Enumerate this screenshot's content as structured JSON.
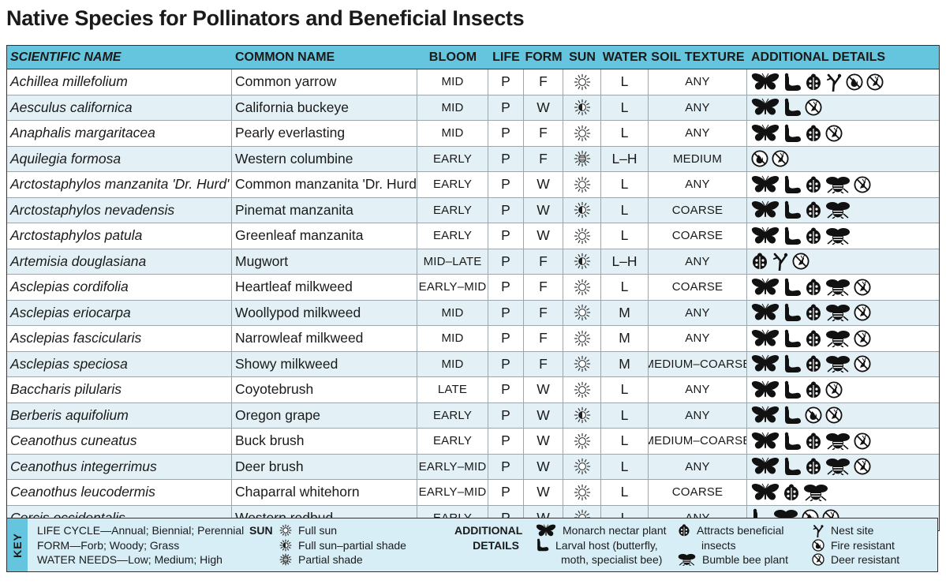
{
  "title": "Native Species for Pollinators and Beneficial Insects",
  "columns": {
    "scientific": "SCIENTIFIC NAME",
    "common": "COMMON NAME",
    "bloom": "BLOOM",
    "life": "LIFE",
    "form": "FORM",
    "sun": "SUN",
    "water": "WATER",
    "soil": "SOIL TEXTURE",
    "additional": "ADDITIONAL DETAILS"
  },
  "rows": [
    {
      "sci": "Achillea millefolium",
      "common": "Common yarrow",
      "bloom": "MID",
      "life": "P",
      "form": "F",
      "sun": "full-sun",
      "water": "L",
      "soil": "ANY",
      "details": [
        "monarch",
        "larval",
        "beneficial",
        "nest",
        "fire",
        "deer"
      ]
    },
    {
      "sci": "Aesculus californica",
      "common": "California buckeye",
      "bloom": "MID",
      "life": "P",
      "form": "W",
      "sun": "full-sun-partial",
      "water": "L",
      "soil": "ANY",
      "details": [
        "monarch",
        "larval",
        "deer"
      ]
    },
    {
      "sci": "Anaphalis margaritacea",
      "common": "Pearly everlasting",
      "bloom": "MID",
      "life": "P",
      "form": "F",
      "sun": "full-sun",
      "water": "L",
      "soil": "ANY",
      "details": [
        "monarch",
        "larval",
        "beneficial",
        "deer"
      ]
    },
    {
      "sci": "Aquilegia formosa",
      "common": "Western columbine",
      "bloom": "EARLY",
      "life": "P",
      "form": "F",
      "sun": "partial-shade",
      "water": "L–H",
      "soil": "MEDIUM",
      "details": [
        "fire",
        "deer"
      ]
    },
    {
      "sci": "Arctostaphylos manzanita 'Dr. Hurd'",
      "common": "Common manzanita 'Dr. Hurd'",
      "bloom": "EARLY",
      "life": "P",
      "form": "W",
      "sun": "full-sun",
      "water": "L",
      "soil": "ANY",
      "details": [
        "monarch",
        "larval",
        "beneficial",
        "bumble",
        "deer"
      ]
    },
    {
      "sci": "Arctostaphylos nevadensis",
      "common": "Pinemat manzanita",
      "bloom": "EARLY",
      "life": "P",
      "form": "W",
      "sun": "full-sun-partial",
      "water": "L",
      "soil": "COARSE",
      "details": [
        "monarch",
        "larval",
        "beneficial",
        "bumble"
      ]
    },
    {
      "sci": "Arctostaphylos patula",
      "common": "Greenleaf manzanita",
      "bloom": "EARLY",
      "life": "P",
      "form": "W",
      "sun": "full-sun",
      "water": "L",
      "soil": "COARSE",
      "details": [
        "monarch",
        "larval",
        "beneficial",
        "bumble"
      ]
    },
    {
      "sci": "Artemisia douglasiana",
      "common": "Mugwort",
      "bloom": "MID–LATE",
      "life": "P",
      "form": "F",
      "sun": "full-sun-partial",
      "water": "L–H",
      "soil": "ANY",
      "details": [
        "beneficial",
        "nest",
        "deer"
      ]
    },
    {
      "sci": "Asclepias cordifolia",
      "common": "Heartleaf milkweed",
      "bloom": "EARLY–MID",
      "life": "P",
      "form": "F",
      "sun": "full-sun",
      "water": "L",
      "soil": "COARSE",
      "details": [
        "monarch",
        "larval",
        "beneficial",
        "bumble",
        "deer"
      ]
    },
    {
      "sci": "Asclepias eriocarpa",
      "common": "Woollypod milkweed",
      "bloom": "MID",
      "life": "P",
      "form": "F",
      "sun": "full-sun",
      "water": "M",
      "soil": "ANY",
      "details": [
        "monarch",
        "larval",
        "beneficial",
        "bumble",
        "deer"
      ]
    },
    {
      "sci": "Asclepias fascicularis",
      "common": "Narrowleaf milkweed",
      "bloom": "MID",
      "life": "P",
      "form": "F",
      "sun": "full-sun",
      "water": "M",
      "soil": "ANY",
      "details": [
        "monarch",
        "larval",
        "beneficial",
        "bumble",
        "deer"
      ]
    },
    {
      "sci": "Asclepias speciosa",
      "common": "Showy milkweed",
      "bloom": "MID",
      "life": "P",
      "form": "F",
      "sun": "full-sun",
      "water": "M",
      "soil": "MEDIUM–COARSE",
      "details": [
        "monarch",
        "larval",
        "beneficial",
        "bumble",
        "deer"
      ]
    },
    {
      "sci": "Baccharis pilularis",
      "common": "Coyotebrush",
      "bloom": "LATE",
      "life": "P",
      "form": "W",
      "sun": "full-sun",
      "water": "L",
      "soil": "ANY",
      "details": [
        "monarch",
        "larval",
        "beneficial",
        "deer"
      ]
    },
    {
      "sci": "Berberis aquifolium",
      "common": "Oregon grape",
      "bloom": "EARLY",
      "life": "P",
      "form": "W",
      "sun": "full-sun-partial",
      "water": "L",
      "soil": "ANY",
      "details": [
        "monarch",
        "larval",
        "fire",
        "deer"
      ]
    },
    {
      "sci": "Ceanothus cuneatus",
      "common": "Buck brush",
      "bloom": "EARLY",
      "life": "P",
      "form": "W",
      "sun": "full-sun",
      "water": "L",
      "soil": "MEDIUM–COARSE",
      "details": [
        "monarch",
        "larval",
        "beneficial",
        "bumble",
        "deer"
      ]
    },
    {
      "sci": "Ceanothus integerrimus",
      "common": "Deer brush",
      "bloom": "EARLY–MID",
      "life": "P",
      "form": "W",
      "sun": "full-sun",
      "water": "L",
      "soil": "ANY",
      "details": [
        "monarch",
        "larval",
        "beneficial",
        "bumble",
        "deer"
      ]
    },
    {
      "sci": "Ceanothus leucodermis",
      "common": "Chaparral whitehorn",
      "bloom": "EARLY–MID",
      "life": "P",
      "form": "W",
      "sun": "full-sun",
      "water": "L",
      "soil": "COARSE",
      "details": [
        "monarch",
        "beneficial",
        "bumble"
      ]
    },
    {
      "sci": "Cercis occidentalis",
      "common": "Western redbud",
      "bloom": "EARLY",
      "life": "P",
      "form": "W",
      "sun": "full-sun",
      "water": "L",
      "soil": "ANY",
      "details": [
        "larval",
        "bumble",
        "fire",
        "deer"
      ]
    }
  ],
  "key": {
    "label": "KEY",
    "life_cycle": "LIFE CYCLE—Annual; Biennial; Perennial",
    "form": "FORM—Forb; Woody; Grass",
    "water": "WATER NEEDS—Low; Medium; High",
    "sun_label": "SUN",
    "sun_items": [
      "Full sun",
      "Full sun–partial shade",
      "Partial shade"
    ],
    "additional_label_1": "ADDITIONAL",
    "additional_label_2": "DETAILS",
    "monarch": "Monarch nectar plant",
    "larval_1": "Larval host (butterfly,",
    "larval_2": "moth, specialist bee)",
    "beneficial_1": "Attracts beneficial",
    "beneficial_2": "insects",
    "bumble": "Bumble bee plant",
    "nest": "Nest site",
    "fire": "Fire resistant",
    "deer": "Deer resistant"
  },
  "colors": {
    "header": "#66c5de",
    "row_shade": "#e3f1f7",
    "key_bg": "#d8eef6"
  }
}
